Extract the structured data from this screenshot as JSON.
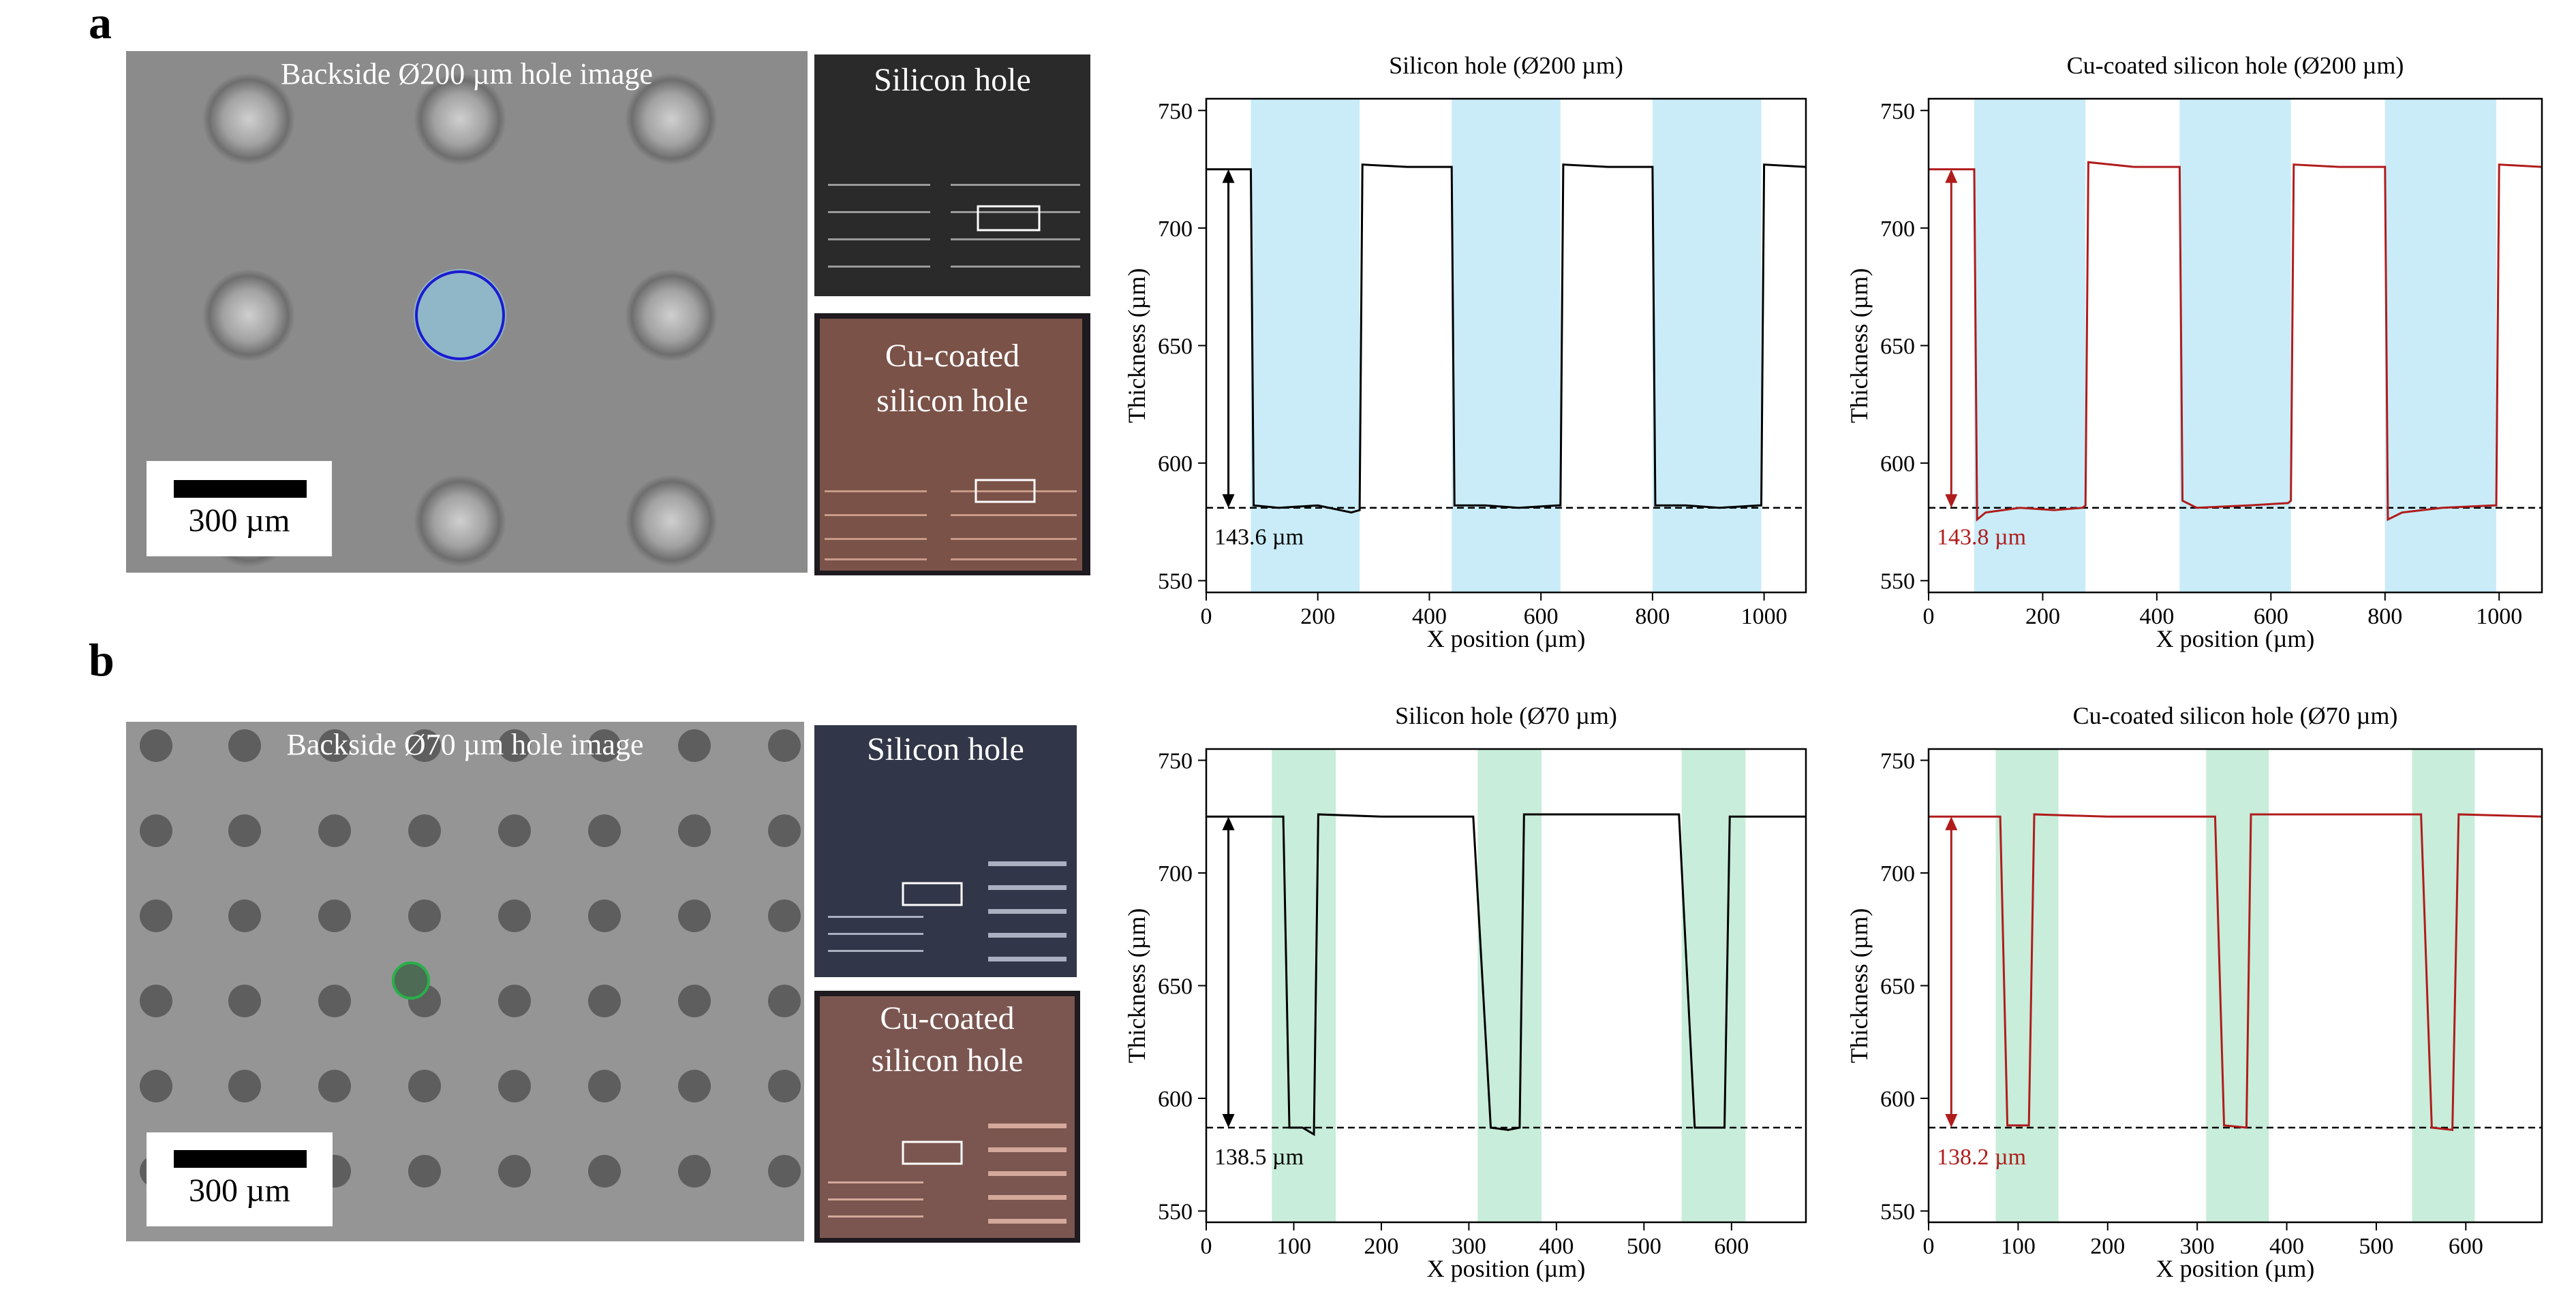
{
  "figure": {
    "panels": [
      {
        "letter": "a",
        "micrograph_title": "Backside Ø200 µm hole image",
        "scale_label": "300 µm",
        "photo_top_label": "Silicon hole",
        "photo_bottom_label": "Cu-coated\nsilicon hole"
      },
      {
        "letter": "b",
        "micrograph_title": "Backside Ø70 µm hole image",
        "scale_label": "300 µm",
        "photo_top_label": "Silicon hole",
        "photo_bottom_label": "Cu-coated\nsilicon hole"
      }
    ]
  },
  "colors": {
    "black_line": "#000000",
    "red_line": "#b01c1c",
    "blue_band": "#c9ecf8",
    "green_band": "#c8edda",
    "blue_circle": "#1b1bd0",
    "green_circle": "#28b04a"
  },
  "chart_data": [
    {
      "type": "line",
      "title": "Silicon hole (Ø200 µm)",
      "xlabel": "X position (µm)",
      "ylabel": "Thickness (µm)",
      "xlim": [
        0,
        1075
      ],
      "ylim": [
        545,
        755
      ],
      "xticks": [
        0,
        200,
        400,
        600,
        800,
        1000
      ],
      "yticks": [
        550,
        600,
        650,
        700,
        750
      ],
      "bands": [
        [
          80,
          275
        ],
        [
          440,
          635
        ],
        [
          800,
          995
        ]
      ],
      "series": [
        {
          "values": [
            [
              0,
              725
            ],
            [
              80,
              725
            ],
            [
              85,
              582
            ],
            [
              130,
              581
            ],
            [
              200,
              582
            ],
            [
              260,
              579
            ],
            [
              275,
              580
            ],
            [
              280,
              727
            ],
            [
              360,
              726
            ],
            [
              440,
              726
            ],
            [
              445,
              582
            ],
            [
              500,
              582
            ],
            [
              560,
              581
            ],
            [
              630,
              582
            ],
            [
              635,
              582
            ],
            [
              640,
              727
            ],
            [
              720,
              726
            ],
            [
              800,
              726
            ],
            [
              805,
              582
            ],
            [
              860,
              582
            ],
            [
              920,
              581
            ],
            [
              990,
              582
            ],
            [
              995,
              582
            ],
            [
              1000,
              727
            ],
            [
              1075,
              726
            ]
          ],
          "color": "#000000"
        }
      ],
      "reference_line": 581,
      "annotation": "143.6 µm",
      "annotation_color": "#000000"
    },
    {
      "type": "line",
      "title": "Cu-coated silicon hole (Ø200 µm)",
      "xlabel": "X position (µm)",
      "ylabel": "Thickness (µm)",
      "xlim": [
        0,
        1075
      ],
      "ylim": [
        545,
        755
      ],
      "xticks": [
        0,
        200,
        400,
        600,
        800,
        1000
      ],
      "yticks": [
        550,
        600,
        650,
        700,
        750
      ],
      "bands": [
        [
          80,
          275
        ],
        [
          440,
          635
        ],
        [
          800,
          995
        ]
      ],
      "series": [
        {
          "values": [
            [
              0,
              725
            ],
            [
              80,
              725
            ],
            [
              85,
              576
            ],
            [
              100,
              579
            ],
            [
              160,
              581
            ],
            [
              220,
              580
            ],
            [
              270,
              581
            ],
            [
              275,
              582
            ],
            [
              280,
              728
            ],
            [
              360,
              726
            ],
            [
              440,
              726
            ],
            [
              445,
              584
            ],
            [
              470,
              581
            ],
            [
              560,
              582
            ],
            [
              630,
              583
            ],
            [
              635,
              584
            ],
            [
              640,
              727
            ],
            [
              720,
              726
            ],
            [
              800,
              726
            ],
            [
              805,
              576
            ],
            [
              830,
              579
            ],
            [
              900,
              581
            ],
            [
              990,
              582
            ],
            [
              995,
              582
            ],
            [
              1000,
              727
            ],
            [
              1075,
              726
            ]
          ],
          "color": "#b01c1c"
        }
      ],
      "reference_line": 581,
      "annotation": "143.8 µm",
      "annotation_color": "#b01c1c"
    },
    {
      "type": "line",
      "title": "Silicon hole (Ø70 µm)",
      "xlabel": "X position (µm)",
      "ylabel": "Thickness (µm)",
      "xlim": [
        0,
        685
      ],
      "ylim": [
        545,
        755
      ],
      "xticks": [
        0,
        100,
        200,
        300,
        400,
        500,
        600
      ],
      "yticks": [
        550,
        600,
        650,
        700,
        750
      ],
      "bands": [
        [
          75,
          148
        ],
        [
          310,
          383
        ],
        [
          543,
          616
        ]
      ],
      "series": [
        {
          "values": [
            [
              0,
              725
            ],
            [
              88,
              725
            ],
            [
              95,
              587
            ],
            [
              110,
              587
            ],
            [
              123,
              584
            ],
            [
              128,
              726
            ],
            [
              200,
              725
            ],
            [
              305,
              725
            ],
            [
              325,
              587
            ],
            [
              345,
              586
            ],
            [
              358,
              587
            ],
            [
              363,
              726
            ],
            [
              450,
              726
            ],
            [
              540,
              726
            ],
            [
              558,
              587
            ],
            [
              578,
              587
            ],
            [
              592,
              587
            ],
            [
              598,
              725
            ],
            [
              685,
              725
            ]
          ],
          "color": "#000000"
        }
      ],
      "reference_line": 587,
      "annotation": "138.5 µm",
      "annotation_color": "#000000"
    },
    {
      "type": "line",
      "title": "Cu-coated silicon hole (Ø70 µm)",
      "xlabel": "X position (µm)",
      "ylabel": "Thickness (µm)",
      "xlim": [
        0,
        685
      ],
      "ylim": [
        545,
        755
      ],
      "xticks": [
        0,
        100,
        200,
        300,
        400,
        500,
        600
      ],
      "yticks": [
        550,
        600,
        650,
        700,
        750
      ],
      "bands": [
        [
          75,
          145
        ],
        [
          310,
          380
        ],
        [
          540,
          610
        ]
      ],
      "series": [
        {
          "values": [
            [
              0,
              725
            ],
            [
              80,
              725
            ],
            [
              88,
              588
            ],
            [
              112,
              588
            ],
            [
              118,
              726
            ],
            [
              200,
              725
            ],
            [
              320,
              725
            ],
            [
              330,
              588
            ],
            [
              355,
              587
            ],
            [
              360,
              726
            ],
            [
              450,
              726
            ],
            [
              550,
              726
            ],
            [
              562,
              587
            ],
            [
              585,
              586
            ],
            [
              592,
              726
            ],
            [
              685,
              725
            ]
          ],
          "color": "#b01c1c"
        }
      ],
      "reference_line": 587,
      "annotation": "138.2 µm",
      "annotation_color": "#b01c1c"
    }
  ]
}
